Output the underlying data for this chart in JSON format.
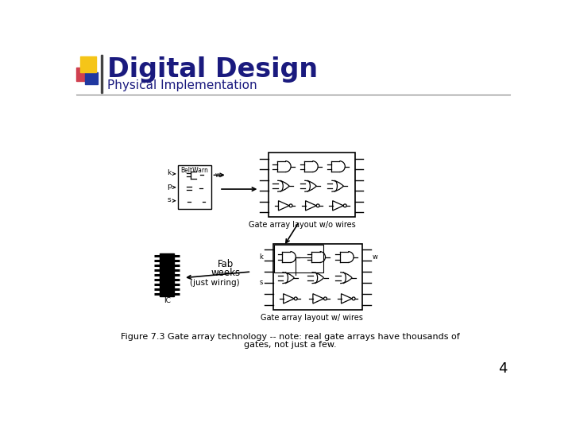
{
  "title": "Digital Design",
  "subtitle": "Physical Implementation",
  "title_color": "#1a1a7e",
  "subtitle_color": "#1a1a7e",
  "figure_caption_line1": "Figure 7.3 Gate array technology -- note: real gate arrays have thousands of",
  "figure_caption_line2": "gates, not just a few.",
  "page_number": "4",
  "bg_color": "#ffffff",
  "header_line_color": "#aaaaaa",
  "logo_yellow": "#f5c518",
  "logo_red": "#d04050",
  "logo_blue": "#2038a0",
  "logo_line_color": "#444444",
  "diagram_scale": 1.0
}
